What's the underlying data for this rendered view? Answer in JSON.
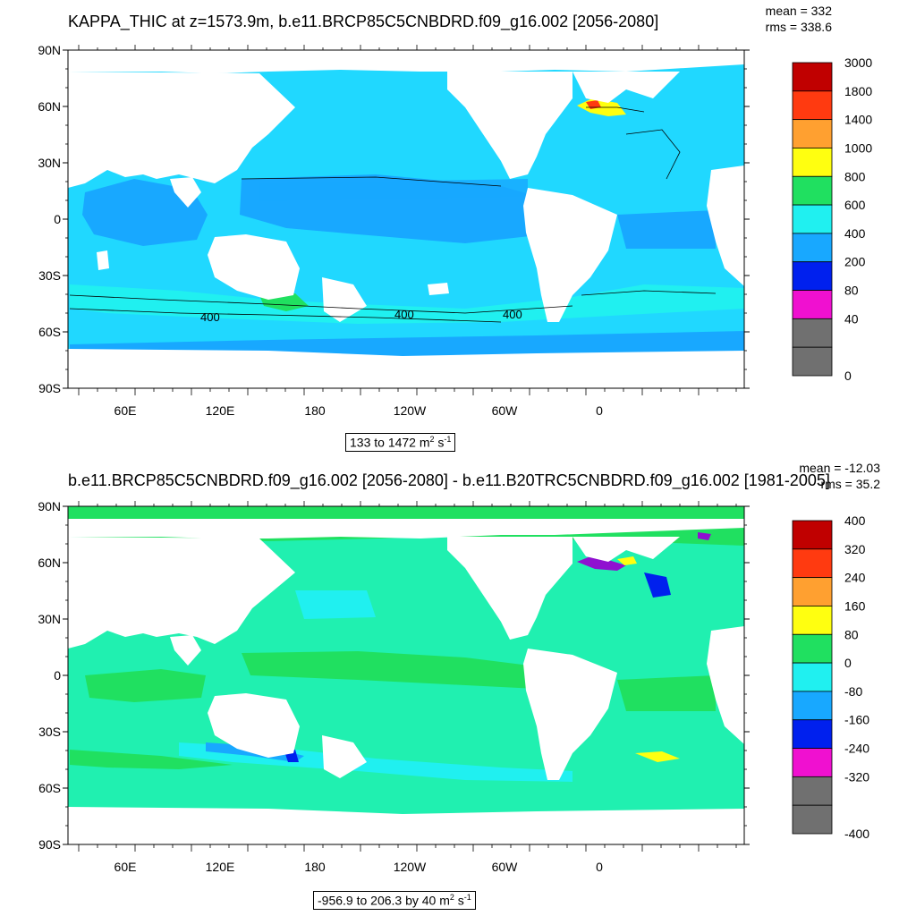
{
  "panels": [
    {
      "title": "KAPPA_THIC at z=1573.9m, b.e11.BRCP85C5CNBDRD.f09_g16.002 [2056-2080]",
      "mean_label": "mean = 332",
      "rms_label": "rms = 338.6",
      "caption_main": "133 to 1472 m",
      "caption_sup1": "2",
      "caption_mid": " s",
      "caption_sup2": "-1",
      "contour_labels": [
        "400",
        "400",
        "400"
      ],
      "colorbar": {
        "labels": [
          "3000",
          "1800",
          "1400",
          "1000",
          "800",
          "600",
          "400",
          "200",
          "80",
          "40",
          "0"
        ],
        "colors": [
          "#c00000",
          "#ee1010",
          "#ff3a10",
          "#f08a10",
          "#ffa030",
          "#ffd030",
          "#ffff10",
          "#60f010",
          "#20e060",
          "#20f0b0",
          "#20f0f0",
          "#20d8ff",
          "#18a8ff",
          "#1070ee",
          "#0020ee",
          "#9010d0",
          "#f010d0",
          "#d0d0d0",
          "#707070"
        ]
      }
    },
    {
      "title": "b.e11.BRCP85C5CNBDRD.f09_g16.002 [2056-2080] - b.e11.B20TRC5CNBDRD.f09_g16.002 [1981-2005]",
      "mean_label": "mean = -12.03",
      "rms_label": "rms = 35.2",
      "caption_main": "-956.9 to 206.3 by 40 m",
      "caption_sup1": "2",
      "caption_mid": " s",
      "caption_sup2": "-1",
      "colorbar": {
        "labels": [
          "400",
          "320",
          "240",
          "160",
          "80",
          "0",
          "-80",
          "-160",
          "-240",
          "-320",
          "-400"
        ],
        "colors": [
          "#c00000",
          "#ee1010",
          "#ff3a10",
          "#f08a10",
          "#ffa030",
          "#ffd030",
          "#ffff10",
          "#60f010",
          "#20e060",
          "#20f0b0",
          "#20f0f0",
          "#20d8ff",
          "#18a8ff",
          "#1070ee",
          "#0020ee",
          "#9010d0",
          "#f010d0",
          "#d0d0d0",
          "#707070"
        ]
      }
    }
  ],
  "axes": {
    "lat_labels": [
      "90N",
      "60N",
      "30N",
      "0",
      "30S",
      "60S",
      "90S"
    ],
    "lon_labels": [
      "60E",
      "120E",
      "180",
      "120W",
      "60W",
      "0"
    ]
  },
  "colors": {
    "land": "#ffffff",
    "top_base": "#20d8ff",
    "top_band": "#18a8ff",
    "top_high": "#20f0f0",
    "bottom_base": "#20f0b0",
    "bottom_green": "#20e060",
    "bottom_cyan": "#20f0f0",
    "bottom_blue": "#18a8ff"
  }
}
